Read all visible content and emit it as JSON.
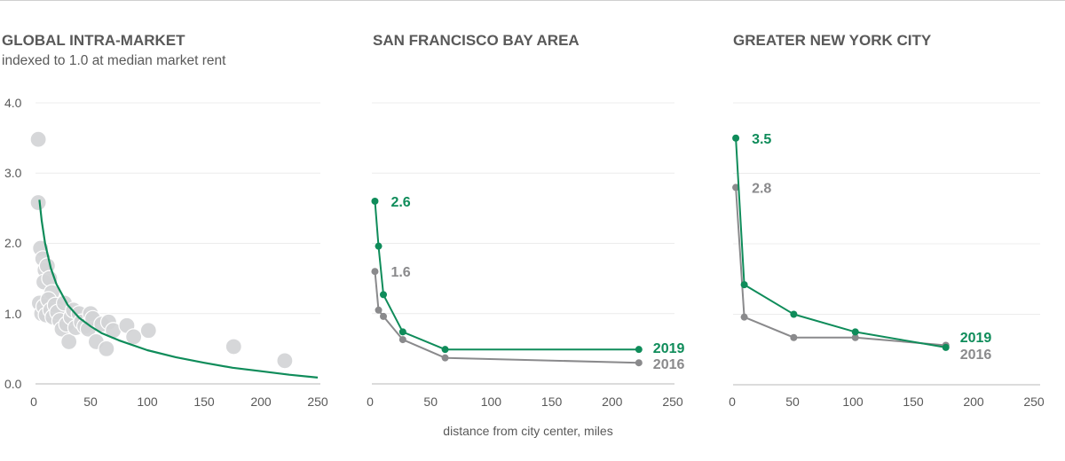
{
  "colors": {
    "green": "#0f8c5a",
    "gray": "#8a8a8c",
    "scatter": "#d3d4d6",
    "grid": "#ececec",
    "axis": "#d0d0d0",
    "text": "#595959"
  },
  "shared_xlabel": "distance from city center, miles",
  "chart_data": [
    {
      "type": "scatter",
      "title": "GLOBAL INTRA-MARKET",
      "subtitle": "indexed to 1.0 at median market rent",
      "xlabel": "",
      "ylabel": "",
      "xlim": [
        0,
        250
      ],
      "ylim": [
        0,
        4
      ],
      "xticks": [
        "0",
        "50",
        "100",
        "150",
        "200",
        "250"
      ],
      "yticks": [
        "0.0",
        "1.0",
        "2.0",
        "3.0",
        "4.0"
      ],
      "grid": true,
      "points": [
        [
          4,
          3.48
        ],
        [
          4,
          2.58
        ],
        [
          6,
          1.93
        ],
        [
          8,
          1.78
        ],
        [
          10,
          1.62
        ],
        [
          12,
          1.68
        ],
        [
          9,
          1.45
        ],
        [
          14,
          1.5
        ],
        [
          16,
          1.3
        ],
        [
          5,
          1.15
        ],
        [
          7,
          1.0
        ],
        [
          9,
          1.1
        ],
        [
          11,
          0.98
        ],
        [
          13,
          1.2
        ],
        [
          15,
          1.05
        ],
        [
          17,
          0.95
        ],
        [
          19,
          1.12
        ],
        [
          21,
          1.02
        ],
        [
          23,
          0.9
        ],
        [
          25,
          0.78
        ],
        [
          27,
          1.15
        ],
        [
          29,
          0.85
        ],
        [
          31,
          0.6
        ],
        [
          33,
          0.95
        ],
        [
          35,
          1.05
        ],
        [
          37,
          0.8
        ],
        [
          40,
          1.0
        ],
        [
          42,
          0.88
        ],
        [
          45,
          0.82
        ],
        [
          48,
          0.78
        ],
        [
          50,
          1.0
        ],
        [
          52,
          0.93
        ],
        [
          55,
          0.6
        ],
        [
          60,
          0.85
        ],
        [
          64,
          0.5
        ],
        [
          66,
          0.88
        ],
        [
          70,
          0.76
        ],
        [
          82,
          0.83
        ],
        [
          88,
          0.67
        ],
        [
          101,
          0.76
        ],
        [
          176,
          0.53
        ],
        [
          221,
          0.33
        ]
      ],
      "fit_curve": {
        "name": "trend",
        "x": [
          5,
          7,
          10,
          15,
          20,
          30,
          40,
          50,
          60,
          75,
          100,
          125,
          150,
          175,
          200,
          225,
          250
        ],
        "y": [
          2.62,
          2.32,
          2.0,
          1.65,
          1.42,
          1.12,
          0.94,
          0.82,
          0.72,
          0.62,
          0.48,
          0.38,
          0.3,
          0.23,
          0.18,
          0.13,
          0.09
        ]
      }
    },
    {
      "type": "line",
      "title": "SAN FRANCISCO BAY AREA",
      "xlim": [
        0,
        250
      ],
      "ylim": [
        0,
        4
      ],
      "xticks": [
        "0",
        "50",
        "100",
        "150",
        "200",
        "250"
      ],
      "grid": true,
      "series": [
        {
          "name": "2016",
          "color": "gray",
          "x": [
            4,
            7,
            11,
            27,
            62,
            222
          ],
          "y": [
            1.6,
            1.05,
            0.96,
            0.63,
            0.37,
            0.3
          ],
          "start_label": "1.6",
          "end_label": "2016"
        },
        {
          "name": "2019",
          "color": "green",
          "x": [
            4,
            7,
            11,
            27,
            62,
            222
          ],
          "y": [
            2.6,
            1.96,
            1.27,
            0.74,
            0.49,
            0.49
          ],
          "start_label": "2.6",
          "end_label": "2019"
        }
      ]
    },
    {
      "type": "line",
      "title": "GREATER NEW YORK CITY",
      "xlim": [
        0,
        250
      ],
      "ylim": [
        0,
        4
      ],
      "xticks": [
        "0",
        "50",
        "100",
        "150",
        "200",
        "250"
      ],
      "grid": true,
      "series": [
        {
          "name": "2016",
          "color": "gray",
          "x": [
            3,
            10,
            51,
            102,
            177
          ],
          "y": [
            2.8,
            0.96,
            0.67,
            0.67,
            0.56
          ],
          "start_label": "2.8",
          "end_label": "2016"
        },
        {
          "name": "2019",
          "color": "green",
          "x": [
            3,
            10,
            51,
            102,
            177
          ],
          "y": [
            3.5,
            1.42,
            1.0,
            0.75,
            0.53
          ],
          "start_label": "3.5",
          "end_label": "2019"
        }
      ]
    }
  ]
}
